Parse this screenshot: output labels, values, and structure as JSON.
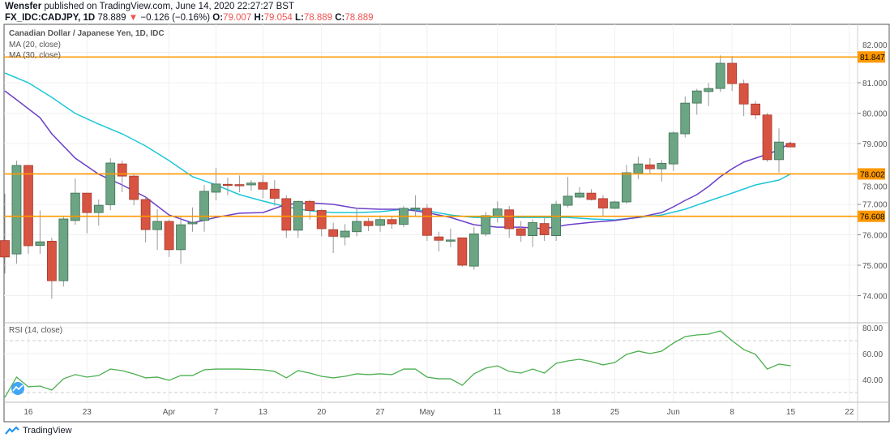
{
  "header": {
    "author": "Wensfer",
    "published": "published on TradingView.com, June 14, 2020 22:27:27 BST",
    "symbol": "FX_IDC:CADJPY, 1D",
    "last": "78.889",
    "change": "−0.126 (−0.16%)",
    "o_label": "O:",
    "o": "79.007",
    "h_label": "H:",
    "h": "79.054",
    "l_label": "L:",
    "l": "78.889",
    "c_label": "C:",
    "c": "78.889",
    "direction_icon": "triangle-down-icon"
  },
  "legend": {
    "title": "Canadian Dollar / Japanese Yen, 1D, IDC",
    "ma20": "MA (20, close)",
    "ma30": "MA (30, close)",
    "rsi": "RSI (14, close)"
  },
  "footer": {
    "brand": "TradingView"
  },
  "colors": {
    "up": "#6ba583",
    "down": "#d75442",
    "ma20": "#6b3fc9",
    "ma30": "#1ec6d8",
    "hline": "#ff9800",
    "rsi": "#4caf50"
  },
  "chart_data": {
    "type": "candlestick",
    "ylim": [
      73.3,
      82.6
    ],
    "price_ticks": [
      "74.000",
      "75.000",
      "76.000",
      "77.000",
      "78.000",
      "79.000",
      "80.000",
      "81.000",
      "82.000"
    ],
    "horizontal_lines": [
      {
        "value": 81.847,
        "label": "81.847"
      },
      {
        "value": 78.002,
        "label": "78.002"
      },
      {
        "value": 76.608,
        "label": "76.608"
      }
    ],
    "x_ticks": [
      {
        "i": 2,
        "label": "16"
      },
      {
        "i": 7,
        "label": "23"
      },
      {
        "i": 14,
        "label": "Apr"
      },
      {
        "i": 18,
        "label": "7"
      },
      {
        "i": 22,
        "label": "13"
      },
      {
        "i": 27,
        "label": "20"
      },
      {
        "i": 32,
        "label": "27"
      },
      {
        "i": 36,
        "label": "May"
      },
      {
        "i": 42,
        "label": "11"
      },
      {
        "i": 47,
        "label": "18"
      },
      {
        "i": 52,
        "label": "25"
      },
      {
        "i": 57,
        "label": "Jun"
      },
      {
        "i": 62,
        "label": "8"
      },
      {
        "i": 67,
        "label": "15"
      },
      {
        "i": 72,
        "label": "22"
      }
    ],
    "ohlc": [
      [
        75.81,
        77.35,
        74.73,
        75.27
      ],
      [
        75.37,
        78.44,
        75.05,
        78.28
      ],
      [
        78.28,
        78.3,
        75.37,
        75.64
      ],
      [
        75.65,
        76.8,
        75.37,
        75.77
      ],
      [
        75.79,
        75.9,
        73.9,
        74.49
      ],
      [
        74.49,
        76.6,
        74.3,
        76.52
      ],
      [
        76.47,
        77.85,
        76.33,
        77.37
      ],
      [
        77.37,
        77.37,
        76.05,
        76.73
      ],
      [
        76.73,
        77.16,
        76.3,
        76.97
      ],
      [
        76.99,
        78.52,
        76.81,
        78.36
      ],
      [
        78.33,
        78.44,
        77.4,
        77.93
      ],
      [
        77.93,
        78.0,
        76.97,
        77.16
      ],
      [
        77.16,
        77.24,
        75.75,
        76.17
      ],
      [
        76.17,
        76.84,
        75.5,
        76.44
      ],
      [
        76.44,
        76.5,
        75.27,
        75.51
      ],
      [
        75.51,
        76.6,
        75.05,
        76.33
      ],
      [
        76.36,
        76.9,
        76.1,
        76.41
      ],
      [
        76.47,
        77.64,
        76.1,
        77.43
      ],
      [
        77.4,
        78.2,
        77.13,
        77.67
      ],
      [
        77.66,
        77.88,
        77.3,
        77.63
      ],
      [
        77.65,
        77.95,
        77.4,
        77.62
      ],
      [
        77.64,
        77.8,
        77.45,
        77.7
      ],
      [
        77.72,
        77.96,
        77.2,
        77.5
      ],
      [
        77.5,
        77.8,
        76.95,
        77.2
      ],
      [
        77.19,
        77.3,
        75.9,
        76.15
      ],
      [
        76.15,
        77.12,
        75.9,
        77.1
      ],
      [
        77.1,
        77.15,
        76.5,
        76.8
      ],
      [
        76.8,
        76.85,
        75.95,
        76.2
      ],
      [
        76.17,
        76.4,
        75.4,
        75.95
      ],
      [
        75.93,
        76.35,
        75.65,
        76.12
      ],
      [
        76.1,
        76.9,
        75.95,
        76.44
      ],
      [
        76.44,
        76.55,
        76.12,
        76.3
      ],
      [
        76.31,
        76.6,
        76.1,
        76.5
      ],
      [
        76.5,
        76.62,
        76.2,
        76.36
      ],
      [
        76.34,
        76.95,
        76.25,
        76.87
      ],
      [
        76.86,
        77.3,
        76.6,
        76.88
      ],
      [
        76.87,
        77.0,
        75.8,
        75.98
      ],
      [
        75.93,
        76.1,
        75.45,
        75.82
      ],
      [
        75.8,
        76.2,
        75.6,
        75.83
      ],
      [
        75.9,
        75.9,
        74.95,
        75.0
      ],
      [
        74.97,
        76.25,
        74.85,
        76.03
      ],
      [
        76.03,
        76.75,
        75.95,
        76.63
      ],
      [
        76.6,
        77.1,
        76.4,
        76.85
      ],
      [
        76.82,
        76.95,
        75.9,
        76.2
      ],
      [
        76.2,
        76.45,
        75.77,
        75.98
      ],
      [
        75.97,
        76.5,
        75.6,
        76.4
      ],
      [
        76.37,
        76.55,
        75.8,
        76.0
      ],
      [
        75.97,
        77.12,
        75.8,
        77.0
      ],
      [
        76.97,
        77.9,
        76.9,
        77.27
      ],
      [
        77.24,
        77.57,
        77.2,
        77.37
      ],
      [
        77.37,
        77.5,
        77.13,
        77.16
      ],
      [
        77.19,
        77.3,
        76.6,
        76.88
      ],
      [
        76.87,
        77.12,
        76.85,
        77.08
      ],
      [
        77.08,
        78.3,
        77.02,
        78.04
      ],
      [
        78.01,
        78.57,
        77.83,
        78.33
      ],
      [
        78.3,
        78.52,
        78.0,
        78.17
      ],
      [
        78.17,
        78.45,
        77.75,
        78.35
      ],
      [
        78.33,
        79.4,
        78.1,
        79.35
      ],
      [
        79.32,
        80.55,
        79.2,
        80.33
      ],
      [
        80.33,
        80.8,
        79.95,
        80.73
      ],
      [
        80.71,
        80.99,
        80.23,
        80.81
      ],
      [
        80.81,
        81.9,
        80.7,
        81.64
      ],
      [
        81.64,
        81.88,
        80.73,
        80.97
      ],
      [
        80.97,
        81.1,
        79.9,
        80.3
      ],
      [
        80.3,
        80.4,
        79.8,
        79.94
      ],
      [
        79.94,
        80.0,
        78.4,
        78.47
      ],
      [
        78.47,
        79.5,
        78.05,
        79.05
      ],
      [
        79.007,
        79.054,
        78.889,
        78.889
      ]
    ],
    "ma20": [
      [
        0,
        80.73
      ],
      [
        1,
        80.44
      ],
      [
        3,
        79.85
      ],
      [
        4,
        79.32
      ],
      [
        6,
        78.52
      ],
      [
        8,
        77.99
      ],
      [
        10,
        77.64
      ],
      [
        12,
        77.24
      ],
      [
        14,
        76.65
      ],
      [
        16,
        76.39
      ],
      [
        18,
        76.57
      ],
      [
        20,
        76.71
      ],
      [
        22,
        76.73
      ],
      [
        24,
        77.0
      ],
      [
        26,
        77.05
      ],
      [
        28,
        77.0
      ],
      [
        30,
        76.87
      ],
      [
        32,
        76.84
      ],
      [
        34,
        76.84
      ],
      [
        36,
        76.73
      ],
      [
        38,
        76.57
      ],
      [
        40,
        76.33
      ],
      [
        42,
        76.25
      ],
      [
        44,
        76.25
      ],
      [
        46,
        76.2
      ],
      [
        48,
        76.33
      ],
      [
        50,
        76.41
      ],
      [
        52,
        76.47
      ],
      [
        54,
        76.57
      ],
      [
        56,
        76.73
      ],
      [
        57,
        76.92
      ],
      [
        58,
        77.13
      ],
      [
        59,
        77.32
      ],
      [
        60,
        77.59
      ],
      [
        61,
        77.91
      ],
      [
        62,
        78.17
      ],
      [
        63,
        78.39
      ],
      [
        64,
        78.52
      ],
      [
        65,
        78.65
      ],
      [
        66,
        78.79
      ],
      [
        67,
        79.03
      ]
    ],
    "ma30": [
      [
        0,
        81.32
      ],
      [
        2,
        81.0
      ],
      [
        4,
        80.52
      ],
      [
        6,
        79.99
      ],
      [
        8,
        79.64
      ],
      [
        10,
        79.32
      ],
      [
        12,
        78.92
      ],
      [
        14,
        78.44
      ],
      [
        16,
        77.91
      ],
      [
        18,
        77.64
      ],
      [
        20,
        77.32
      ],
      [
        22,
        77.11
      ],
      [
        24,
        76.92
      ],
      [
        26,
        76.79
      ],
      [
        28,
        76.73
      ],
      [
        30,
        76.73
      ],
      [
        32,
        76.76
      ],
      [
        34,
        76.84
      ],
      [
        36,
        76.79
      ],
      [
        38,
        76.65
      ],
      [
        40,
        76.57
      ],
      [
        42,
        76.57
      ],
      [
        44,
        76.57
      ],
      [
        46,
        76.57
      ],
      [
        48,
        76.57
      ],
      [
        50,
        76.52
      ],
      [
        52,
        76.49
      ],
      [
        54,
        76.57
      ],
      [
        56,
        76.65
      ],
      [
        58,
        76.84
      ],
      [
        60,
        77.11
      ],
      [
        62,
        77.37
      ],
      [
        64,
        77.64
      ],
      [
        66,
        77.8
      ],
      [
        67,
        78.0
      ]
    ],
    "rsi": {
      "ylim": [
        23,
        84
      ],
      "ticks": [
        "40.00",
        "60.00",
        "80.00"
      ],
      "bands": [
        30,
        70
      ],
      "values": [
        26.3,
        41.9,
        34.4,
        35,
        31.9,
        40.6,
        43.8,
        41.9,
        43.1,
        48.1,
        46.9,
        44.4,
        41.3,
        41.9,
        39.4,
        43.1,
        43.1,
        47.5,
        48.1,
        48.1,
        48.1,
        47.8,
        47.5,
        46.3,
        41.3,
        46.9,
        45,
        42.5,
        41.3,
        42.5,
        44.4,
        43.8,
        44.4,
        43.8,
        48.1,
        48.1,
        41.9,
        40.6,
        40.6,
        35.6,
        44.4,
        48.8,
        50.6,
        46.3,
        45,
        48.1,
        45,
        52.5,
        54.4,
        55.6,
        53.8,
        51.3,
        53.1,
        59.4,
        61.9,
        60,
        61.9,
        68.1,
        73.1,
        74.4,
        75,
        77.5,
        70,
        63.1,
        59.4,
        48.1,
        51.9,
        50.6
      ]
    }
  }
}
